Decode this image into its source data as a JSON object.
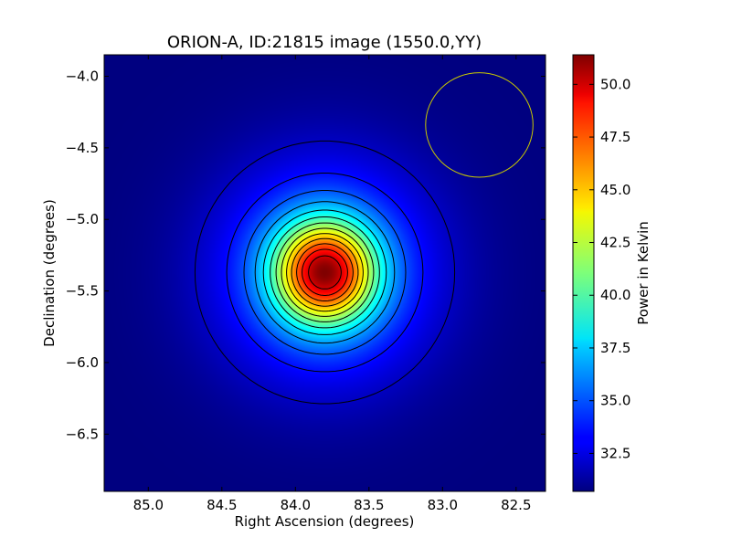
{
  "chart_data": {
    "type": "heatmap",
    "title": "ORION-A, ID:21815 image (1550.0,YY)",
    "xlabel": "Right Ascension (degrees)",
    "ylabel": "Declination (degrees)",
    "xlim": [
      85.3,
      82.3
    ],
    "ylim": [
      -6.9,
      -3.85
    ],
    "x_ticks": [
      85.0,
      84.5,
      84.0,
      83.5,
      83.0,
      82.5
    ],
    "x_tick_labels": [
      "85.0",
      "84.5",
      "84.0",
      "83.5",
      "83.0",
      "82.5"
    ],
    "y_ticks": [
      -4.0,
      -4.5,
      -5.0,
      -5.5,
      -6.0,
      -6.5
    ],
    "y_tick_labels": [
      "−4.0",
      "−4.5",
      "−5.0",
      "−5.5",
      "−6.0",
      "−6.5"
    ],
    "colormap": "jet",
    "colorbar": {
      "label": "Power in Kelvin",
      "range": [
        30.7,
        51.4
      ],
      "ticks": [
        32.5,
        35.0,
        37.5,
        40.0,
        42.5,
        45.0,
        47.5,
        50.0
      ],
      "tick_labels": [
        "32.5",
        "35.0",
        "37.5",
        "40.0",
        "42.5",
        "45.0",
        "47.5",
        "50.0"
      ]
    },
    "source": {
      "center_ra": 83.8,
      "center_dec": -5.37,
      "peak_kelvin": 51.4,
      "background_kelvin": 30.7
    },
    "contours": {
      "count": 13,
      "color": "#000000"
    },
    "beam": {
      "center_ra": 82.75,
      "center_dec": -4.34,
      "radius_deg": 0.365,
      "color": "#c8c800"
    }
  }
}
